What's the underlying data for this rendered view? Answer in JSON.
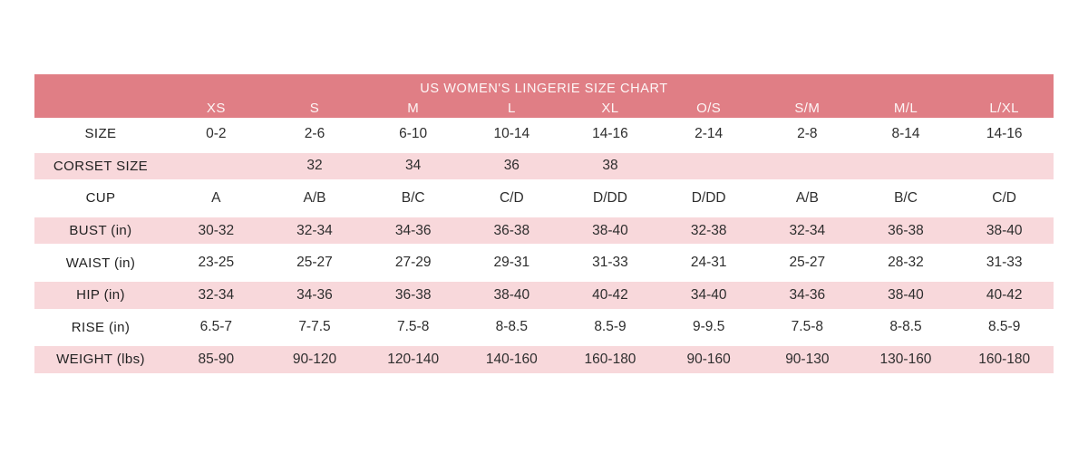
{
  "chart_data": {
    "type": "table",
    "title": "US WOMEN'S LINGERIE SIZE CHART",
    "columns": [
      "XS",
      "S",
      "M",
      "L",
      "XL",
      "O/S",
      "S/M",
      "M/L",
      "L/XL"
    ],
    "rows": [
      {
        "label": "SIZE",
        "values": [
          "0-2",
          "2-6",
          "6-10",
          "10-14",
          "14-16",
          "2-14",
          "2-8",
          "8-14",
          "14-16"
        ]
      },
      {
        "label": "CORSET SIZE",
        "values": [
          "",
          "32",
          "34",
          "36",
          "38",
          "",
          "",
          "",
          ""
        ]
      },
      {
        "label": "CUP",
        "values": [
          "A",
          "A/B",
          "B/C",
          "C/D",
          "D/DD",
          "D/DD",
          "A/B",
          "B/C",
          "C/D"
        ]
      },
      {
        "label": "BUST (in)",
        "values": [
          "30-32",
          "32-34",
          "34-36",
          "36-38",
          "38-40",
          "32-38",
          "32-34",
          "36-38",
          "38-40"
        ]
      },
      {
        "label": "WAIST (in)",
        "values": [
          "23-25",
          "25-27",
          "27-29",
          "29-31",
          "31-33",
          "24-31",
          "25-27",
          "28-32",
          "31-33"
        ]
      },
      {
        "label": "HIP (in)",
        "values": [
          "32-34",
          "34-36",
          "36-38",
          "38-40",
          "40-42",
          "34-40",
          "34-36",
          "38-40",
          "40-42"
        ]
      },
      {
        "label": "RISE (in)",
        "values": [
          "6.5-7",
          "7-7.5",
          "7.5-8",
          "8-8.5",
          "8.5-9",
          "9-9.5",
          "7.5-8",
          "8-8.5",
          "8.5-9"
        ]
      },
      {
        "label": "WEIGHT (lbs)",
        "values": [
          "85-90",
          "90-120",
          "120-140",
          "140-160",
          "160-180",
          "90-160",
          "90-130",
          "130-160",
          "160-180"
        ]
      }
    ],
    "layout": {
      "stripe_pattern": "alternating white and pink rows, header band salmon",
      "pink_rows": [
        "CORSET SIZE",
        "BUST (in)",
        "HIP (in)",
        "WEIGHT (lbs)"
      ]
    },
    "colors": {
      "header_bg": "#e07e85",
      "stripe_bg": "#f8d8db",
      "header_text": "#fdf6f6",
      "body_text": "#2e2e2e"
    }
  }
}
